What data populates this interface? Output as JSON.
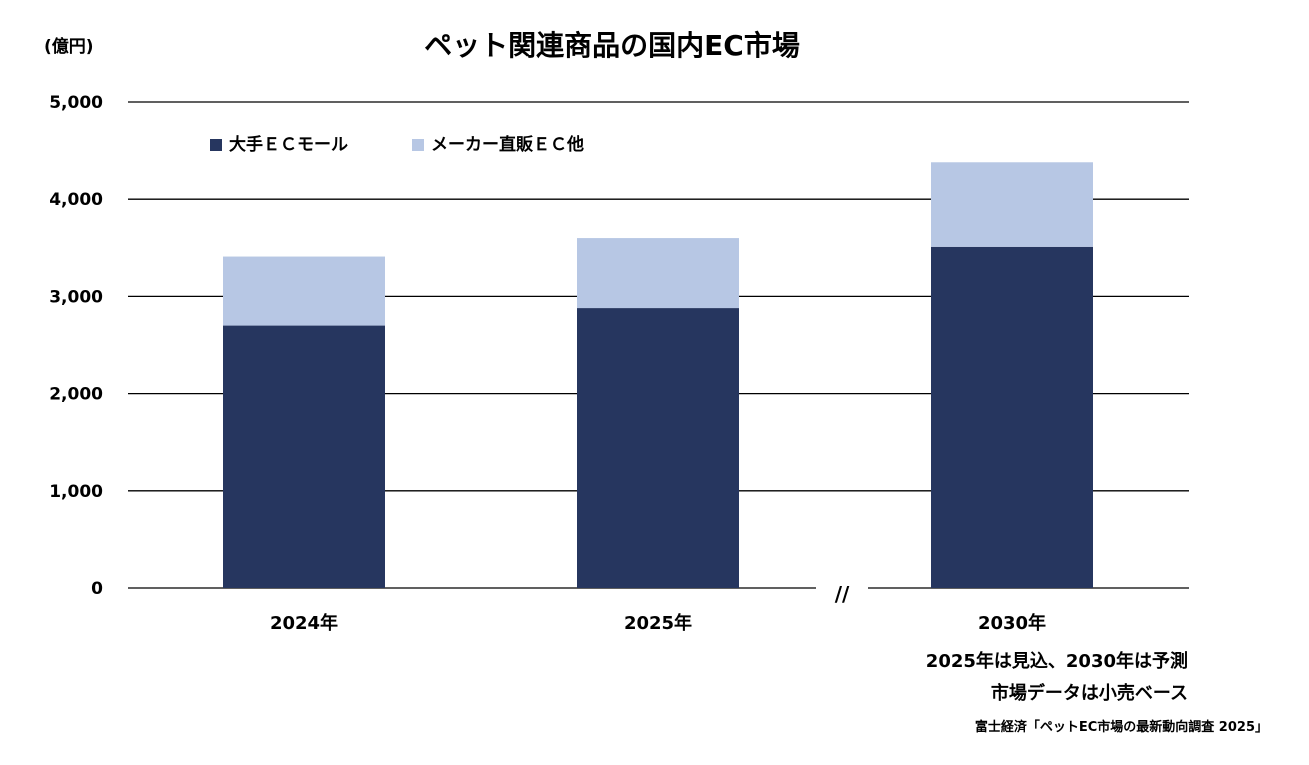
{
  "chart_data": {
    "type": "bar",
    "stacked": true,
    "title": "ペット関連商品の国内EC市場",
    "ylabel": "(億円)",
    "xlabel": "",
    "ylim": [
      0,
      5000
    ],
    "yticks": [
      0,
      1000,
      2000,
      3000,
      4000,
      5000
    ],
    "ytick_labels": [
      "0",
      "1,000",
      "2,000",
      "3,000",
      "4,000",
      "5,000"
    ],
    "categories": [
      "2024年",
      "2025年",
      "2030年"
    ],
    "series": [
      {
        "name": "大手ＥＣモール",
        "color": "#26365f",
        "values": [
          2700,
          2880,
          3510
        ]
      },
      {
        "name": "メーカー直販ＥＣ他",
        "color": "#b7c7e4",
        "values": [
          710,
          720,
          870
        ]
      }
    ],
    "axis_break": "//",
    "grid": true,
    "legend_position": "top-left"
  },
  "notes": {
    "line1": "2025年は見込、2030年は予測",
    "line2": "市場データは小売ベース",
    "source": "富士経済「ペットEC市場の最新動向調査 2025」"
  }
}
